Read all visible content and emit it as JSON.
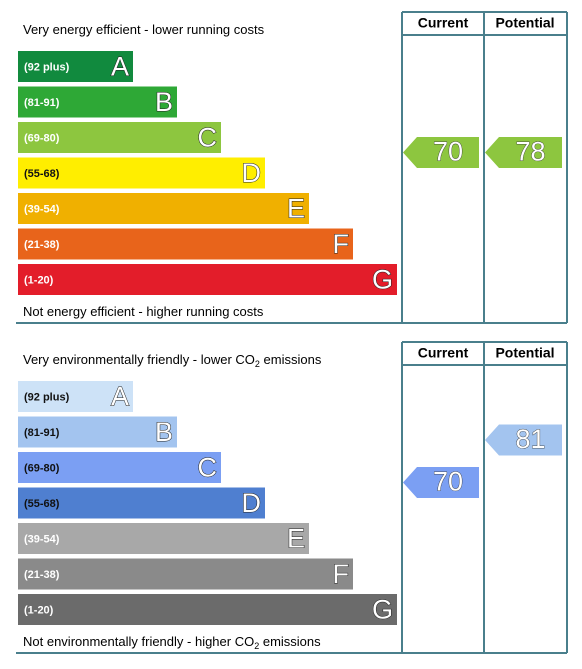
{
  "panels": [
    {
      "top_text": [
        "Very energy efficient - lower running costs"
      ],
      "bottom_text": [
        "Not energy efficient - higher running costs"
      ],
      "headers": [
        "Current",
        "Potential"
      ],
      "bands": [
        {
          "range": "(92 plus)",
          "letter": "A"
        },
        {
          "range": "(81-91)",
          "letter": "B"
        },
        {
          "range": "(69-80)",
          "letter": "C"
        },
        {
          "range": "(55-68)",
          "letter": "D"
        },
        {
          "range": "(39-54)",
          "letter": "E"
        },
        {
          "range": "(21-38)",
          "letter": "F"
        },
        {
          "range": "(1-20)",
          "letter": "G"
        }
      ],
      "current": "70",
      "potential": "78"
    },
    {
      "top_text": [
        "Very environmentally friendly - lower CO",
        "2",
        " emissions"
      ],
      "bottom_text": [
        "Not environmentally friendly - higher CO",
        "2",
        " emissions"
      ],
      "headers": [
        "Current",
        "Potential"
      ],
      "bands": [
        {
          "range": "(92 plus)",
          "letter": "A"
        },
        {
          "range": "(81-91)",
          "letter": "B"
        },
        {
          "range": "(69-80)",
          "letter": "C"
        },
        {
          "range": "(55-68)",
          "letter": "D"
        },
        {
          "range": "(39-54)",
          "letter": "E"
        },
        {
          "range": "(21-38)",
          "letter": "F"
        },
        {
          "range": "(1-20)",
          "letter": "G"
        }
      ],
      "current": "70",
      "potential": "81"
    }
  ]
}
